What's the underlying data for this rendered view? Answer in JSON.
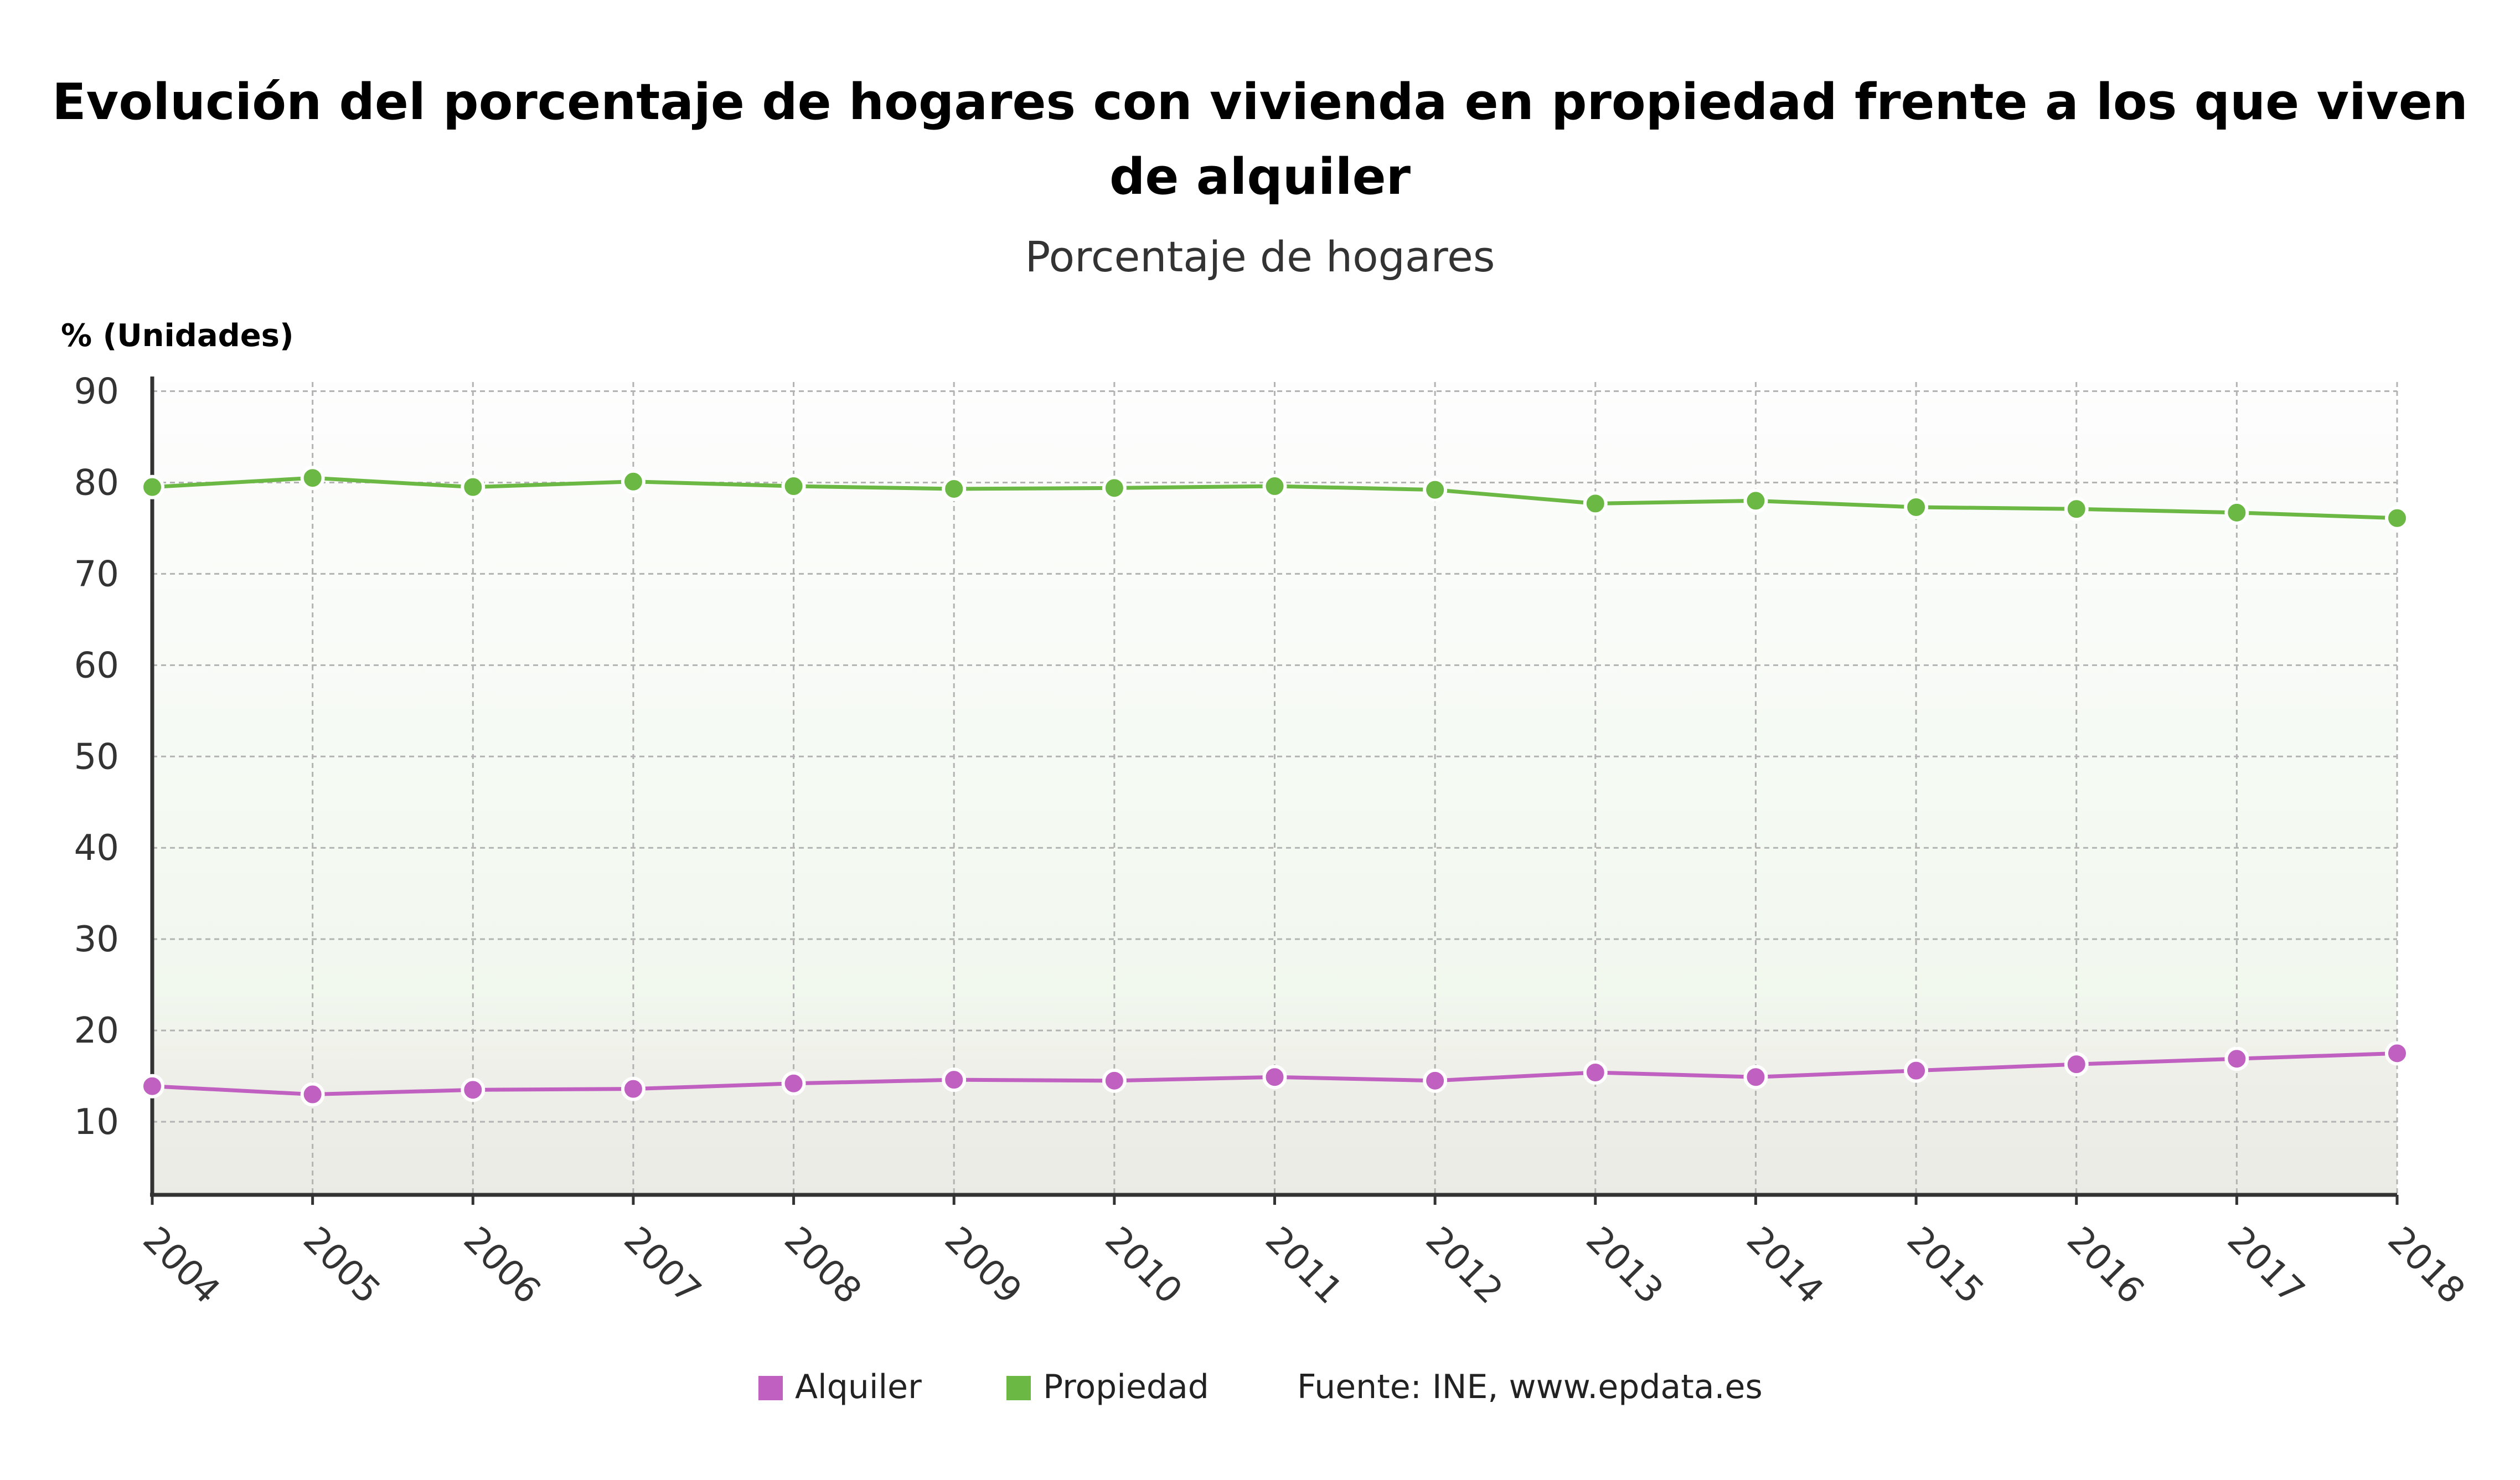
{
  "chart_data": {
    "type": "line",
    "title_line1": "Evolución del porcentaje de hogares con vivienda en propiedad frente a los que viven",
    "title_line2": "de alquiler",
    "subtitle": "Porcentaje de hogares",
    "ylabel": "% (Unidades)",
    "x": [
      "2004",
      "2005",
      "2006",
      "2007",
      "2008",
      "2009",
      "2010",
      "2011",
      "2012",
      "2013",
      "2014",
      "2015",
      "2016",
      "2017",
      "2018"
    ],
    "ylim": [
      2,
      91
    ],
    "yticks": [
      10,
      20,
      30,
      40,
      50,
      60,
      70,
      80,
      90
    ],
    "grid": true,
    "legend_position": "bottom",
    "series": [
      {
        "name": "Alquiler",
        "color": "#c060c0",
        "values": [
          13.9,
          13.0,
          13.5,
          13.6,
          14.2,
          14.6,
          14.5,
          14.9,
          14.5,
          15.4,
          14.9,
          15.6,
          16.3,
          16.9,
          17.5
        ]
      },
      {
        "name": "Propiedad",
        "color": "#6cb844",
        "values": [
          79.5,
          80.5,
          79.5,
          80.1,
          79.6,
          79.3,
          79.4,
          79.6,
          79.2,
          77.7,
          78.0,
          77.3,
          77.1,
          76.7,
          76.1
        ]
      }
    ],
    "source": "Fuente: INE, www.epdata.es"
  }
}
